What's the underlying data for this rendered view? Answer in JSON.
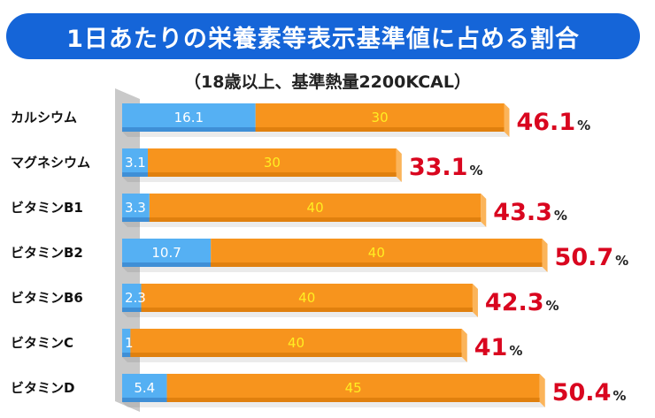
{
  "title": "1日あたりの栄養素等表示基準値に占める割合",
  "subtitle": "（18歳以上、基準熱量2200KCAL）",
  "colors": {
    "title_bg": "#1565d8",
    "blue_segment": "#55b0f3",
    "orange_segment": "#f7941d",
    "total_text": "#d9061f",
    "axis_wall": "#c9c9c9"
  },
  "chart_data": {
    "type": "bar",
    "orientation": "horizontal",
    "stacked": true,
    "title": "1日あたりの栄養素等表示基準値に占める割合",
    "subtitle": "（18歳以上、基準熱量2200KCAL）",
    "categories": [
      "カルシウム",
      "マグネシウム",
      "ビタミンB1",
      "ビタミンB2",
      "ビタミンB6",
      "ビタミンC",
      "ビタミンD"
    ],
    "series": [
      {
        "name": "blue",
        "color": "#55b0f3",
        "values": [
          16.1,
          3.1,
          3.3,
          10.7,
          2.3,
          1,
          5.4
        ],
        "labels": [
          "16.1",
          "3.1",
          "3.3",
          "10.7",
          "2.3",
          "1",
          "5.4"
        ]
      },
      {
        "name": "orange",
        "color": "#f7941d",
        "values": [
          30,
          30,
          40,
          40,
          40,
          40,
          45
        ],
        "labels": [
          "30",
          "30",
          "40",
          "40",
          "40",
          "40",
          "45"
        ]
      }
    ],
    "totals": [
      "46.1",
      "33.1",
      "43.3",
      "50.7",
      "42.3",
      "41",
      "50.4"
    ],
    "unit": "%",
    "xlim": [
      0,
      51
    ],
    "grid": false,
    "legend": "none"
  }
}
